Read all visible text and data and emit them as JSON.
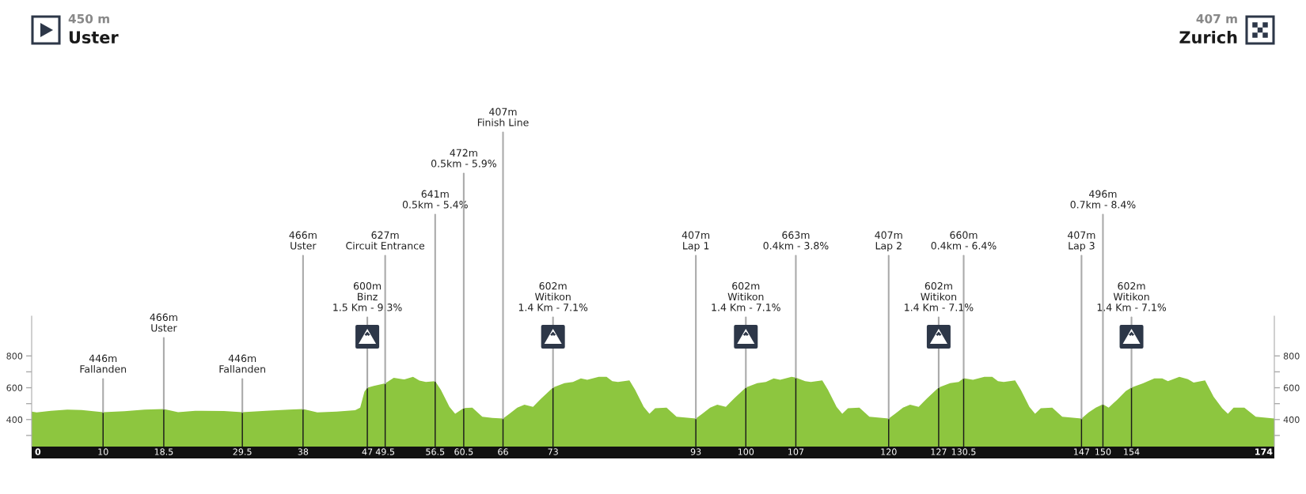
{
  "chart_data": {
    "type": "area",
    "xlim": [
      0,
      174
    ],
    "ylim": [
      230,
      1050
    ],
    "y2lim": [
      230,
      1050
    ],
    "xticks": [
      0,
      10,
      18.5,
      29.5,
      38,
      47,
      49.5,
      56.5,
      60.5,
      66,
      73,
      93,
      100,
      107,
      120,
      127,
      130.5,
      147,
      150,
      154,
      174
    ],
    "yticks": [
      {
        "value": 300,
        "label": null
      },
      400,
      {
        "value": 500,
        "label": null
      },
      600,
      {
        "value": 700,
        "label": null
      },
      800
    ],
    "y2ticks": [
      {
        "value": 300,
        "label": null
      },
      400,
      {
        "value": 500,
        "label": null
      },
      600,
      {
        "value": 700,
        "label": null
      },
      800
    ],
    "series": [
      {
        "color": "#8dc63f",
        "x": [
          0,
          0.7,
          2.7,
          5,
          7,
          10,
          13,
          15.8,
          18.5,
          20.5,
          22.9,
          26.9,
          29.5,
          32.8,
          36,
          38,
          40,
          42.7,
          45.3,
          46,
          46.6,
          47,
          47.9,
          49.5,
          50.7,
          52.2,
          53.4,
          54.3,
          55.2,
          56.5,
          57.3,
          58.5,
          59.3,
          60.5,
          61.7,
          63.1,
          64.5,
          66,
          66.9,
          68,
          69,
          70.2,
          71.4,
          73,
          74.6,
          75.8,
          76.9,
          77.8,
          79.4,
          80.5,
          81.3,
          82.1,
          83.7,
          84.5,
          85.7,
          86.5,
          87.3,
          88.9,
          90.3,
          93,
          93.9,
          95,
          96,
          97.2,
          98.4,
          100,
          101.6,
          102.8,
          103.9,
          104.8,
          106.4,
          107,
          108.3,
          109.1,
          110.7,
          111.5,
          112.7,
          113.5,
          114.3,
          115.9,
          117.3,
          120,
          120.9,
          122,
          123,
          124.2,
          125.4,
          127,
          128.6,
          129.8,
          130.5,
          131.8,
          133.4,
          134.5,
          135.3,
          136.1,
          137.7,
          138.5,
          139.7,
          140.5,
          141.3,
          142.9,
          144.3,
          147,
          148,
          149,
          150,
          150.8,
          152,
          153.2,
          154,
          155.6,
          157.2,
          158.3,
          159.1,
          160.7,
          161.9,
          162.7,
          164.3,
          165.5,
          166.7,
          167.5,
          168.3,
          169.8,
          171.4,
          174
        ],
        "values": [
          450,
          445,
          455,
          462,
          460,
          446,
          452,
          462,
          466,
          446,
          455,
          454,
          446,
          455,
          462,
          466,
          445,
          450,
          458,
          475,
          575,
          600,
          612,
          627,
          662,
          652,
          668,
          645,
          636,
          641,
          587,
          480,
          436,
          472,
          475,
          418,
          410,
          407,
          436,
          475,
          493,
          480,
          535,
          602,
          629,
          636,
          659,
          650,
          668,
          668,
          641,
          636,
          646,
          587,
          480,
          436,
          471,
          475,
          418,
          407,
          436,
          475,
          493,
          480,
          535,
          602,
          629,
          636,
          659,
          650,
          668,
          663,
          641,
          636,
          646,
          587,
          480,
          436,
          471,
          475,
          418,
          407,
          436,
          475,
          493,
          480,
          535,
          602,
          629,
          636,
          660,
          650,
          668,
          668,
          641,
          636,
          646,
          587,
          480,
          436,
          471,
          475,
          418,
          407,
          445,
          475,
          496,
          475,
          525,
          579,
          602,
          627,
          659,
          659,
          641,
          668,
          654,
          632,
          646,
          543,
          471,
          436,
          475,
          475,
          418,
          407
        ]
      },
      {
        "type": "bar",
        "color": "#1a1a1a",
        "x": [
          10,
          18.5,
          29.5,
          38,
          47,
          49.5,
          56.5,
          60.5,
          66,
          73,
          93,
          100,
          107,
          120,
          127,
          130.5,
          147,
          150,
          154
        ],
        "values": [
          446,
          466,
          446,
          466,
          600,
          627,
          641,
          472,
          407,
          602,
          407,
          602,
          663,
          407,
          602,
          660,
          407,
          496,
          602
        ]
      }
    ],
    "annotations": [
      "450 m\nUster",
      "407 m\nZurich",
      {
        "text": "446m\nFallanden",
        "x": 10,
        "y": 446
      },
      {
        "text": "466m\nUster",
        "x": 18.5,
        "y": 466
      },
      {
        "text": "446m\nFallanden",
        "x": 29.5,
        "y": 446
      },
      {
        "text": "466m\nUster",
        "x": 38,
        "y": 466
      },
      {
        "text": "600m\nBinz\n1.5 Km - 9.3%",
        "x": 47,
        "y": 600
      },
      {
        "text": "627m\nCircuit Entrance",
        "x": 49.5,
        "y": 627
      },
      {
        "text": "641m\n0.5km - 5.4%",
        "x": 56.5,
        "y": 641
      },
      {
        "text": "472m\n0.5km - 5.9%",
        "x": 60.5,
        "y": 472
      },
      {
        "text": "407m\nFinish Line",
        "x": 66,
        "y": 407
      },
      {
        "text": "602m\nWitikon\n1.4 Km - 7.1%",
        "x": 73,
        "y": 602
      },
      {
        "text": "407m\nLap 1",
        "x": 93,
        "y": 407
      },
      {
        "text": "602m\nWitikon\n1.4 Km - 7.1%",
        "x": 100,
        "y": 602
      },
      {
        "text": "663m\n0.4km - 3.8%",
        "x": 107,
        "y": 663
      },
      {
        "text": "407m\nLap 2",
        "x": 120,
        "y": 407
      },
      {
        "text": "602m\nWitikon\n1.4 Km - 7.1%",
        "x": 127,
        "y": 602
      },
      {
        "text": "660m\n0.4km - 6.4%",
        "x": 130.5,
        "y": 660
      },
      {
        "text": "407m\nLap 3",
        "x": 147,
        "y": 407
      },
      {
        "text": "496m\n0.7km - 8.4%",
        "x": 150,
        "y": 496
      },
      {
        "text": "602m\nWitikon\n1.4 Km - 7.1%",
        "x": 154,
        "y": 602
      }
    ]
  }
}
